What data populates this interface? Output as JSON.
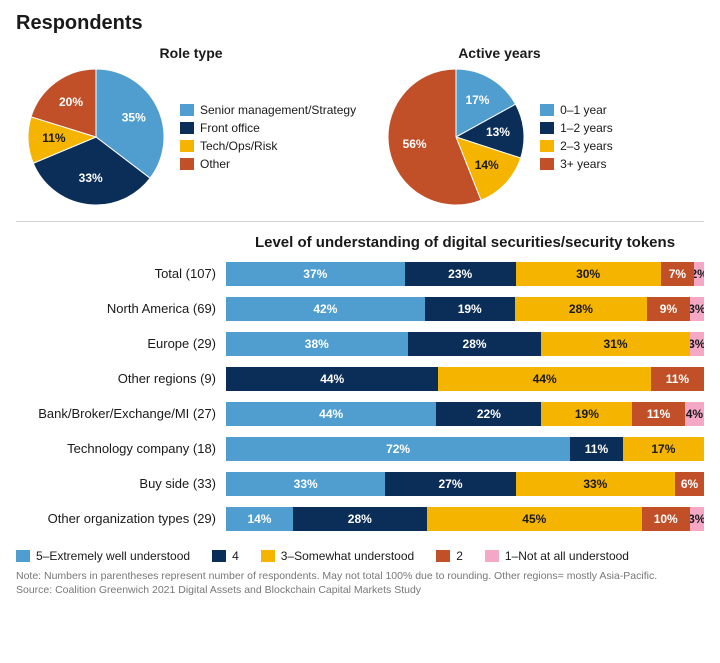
{
  "title": "Respondents",
  "palette": {
    "c1": "#4f9ecf",
    "c2": "#0b2e59",
    "c3": "#f4b400",
    "c4": "#c15029",
    "c5": "#f4a8c6"
  },
  "pie_role": {
    "title": "Role type",
    "radius": 68,
    "label_fontsize": 12,
    "slices": [
      {
        "label": "Senior management/Strategy",
        "value": 35,
        "color": "#4f9ecf",
        "pct_text": "35%"
      },
      {
        "label": "Front office",
        "value": 33,
        "color": "#0b2e59",
        "pct_text": "33%"
      },
      {
        "label": "Tech/Ops/Risk",
        "value": 11,
        "color": "#f4b400",
        "pct_text": "11%"
      },
      {
        "label": "Other",
        "value": 20,
        "color": "#c15029",
        "pct_text": "20%"
      }
    ]
  },
  "pie_years": {
    "title": "Active years",
    "radius": 68,
    "label_fontsize": 12,
    "slices": [
      {
        "label": "0–1 year",
        "value": 17,
        "color": "#4f9ecf",
        "pct_text": "17%"
      },
      {
        "label": "1–2 years",
        "value": 13,
        "color": "#0b2e59",
        "pct_text": "13%"
      },
      {
        "label": "2–3 years",
        "value": 14,
        "color": "#f4b400",
        "pct_text": "14%"
      },
      {
        "label": "3+ years",
        "value": 56,
        "color": "#c15029",
        "pct_text": "56%"
      }
    ]
  },
  "bars": {
    "title": "Level of understanding of digital securities/security tokens",
    "legend": [
      {
        "label": "5–Extremely well understood",
        "color": "#4f9ecf"
      },
      {
        "label": "4",
        "color": "#0b2e59"
      },
      {
        "label": "3–Somewhat understood",
        "color": "#f4b400"
      },
      {
        "label": "2",
        "color": "#c15029"
      },
      {
        "label": "1–Not at all understood",
        "color": "#f4a8c6"
      }
    ],
    "label_fontsize": 13,
    "rows": [
      {
        "label": "Total (107)",
        "segs": [
          {
            "v": 37,
            "t": "37%"
          },
          {
            "v": 23,
            "t": "23%"
          },
          {
            "v": 30,
            "t": "30%"
          },
          {
            "v": 7,
            "t": "7%"
          },
          {
            "v": 2,
            "t": "2%"
          }
        ]
      },
      {
        "label": "North America (69)",
        "segs": [
          {
            "v": 42,
            "t": "42%"
          },
          {
            "v": 19,
            "t": "19%"
          },
          {
            "v": 28,
            "t": "28%"
          },
          {
            "v": 9,
            "t": "9%"
          },
          {
            "v": 3,
            "t": "3%"
          }
        ]
      },
      {
        "label": "Europe (29)",
        "segs": [
          {
            "v": 38,
            "t": "38%"
          },
          {
            "v": 28,
            "t": "28%"
          },
          {
            "v": 31,
            "t": "31%"
          },
          {
            "v": 0,
            "t": ""
          },
          {
            "v": 3,
            "t": "3%"
          }
        ]
      },
      {
        "label": "Other regions (9)",
        "segs": [
          {
            "v": 0,
            "t": ""
          },
          {
            "v": 44,
            "t": "44%"
          },
          {
            "v": 44,
            "t": "44%"
          },
          {
            "v": 11,
            "t": "11%"
          },
          {
            "v": 0,
            "t": ""
          }
        ]
      },
      {
        "label": "Bank/Broker/Exchange/MI (27)",
        "segs": [
          {
            "v": 44,
            "t": "44%"
          },
          {
            "v": 22,
            "t": "22%"
          },
          {
            "v": 19,
            "t": "19%"
          },
          {
            "v": 11,
            "t": "11%"
          },
          {
            "v": 4,
            "t": "4%"
          }
        ]
      },
      {
        "label": "Technology company (18)",
        "segs": [
          {
            "v": 72,
            "t": "72%"
          },
          {
            "v": 11,
            "t": "11%"
          },
          {
            "v": 17,
            "t": "17%"
          },
          {
            "v": 0,
            "t": ""
          },
          {
            "v": 0,
            "t": ""
          }
        ]
      },
      {
        "label": "Buy side (33)",
        "segs": [
          {
            "v": 33,
            "t": "33%"
          },
          {
            "v": 27,
            "t": "27%"
          },
          {
            "v": 33,
            "t": "33%"
          },
          {
            "v": 6,
            "t": "6%"
          },
          {
            "v": 0,
            "t": ""
          }
        ]
      },
      {
        "label": "Other organization types (29)",
        "segs": [
          {
            "v": 14,
            "t": "14%"
          },
          {
            "v": 28,
            "t": "28%"
          },
          {
            "v": 45,
            "t": "45%"
          },
          {
            "v": 10,
            "t": "10%"
          },
          {
            "v": 3,
            "t": "3%"
          }
        ]
      }
    ],
    "seg_colors": [
      "#4f9ecf",
      "#0b2e59",
      "#f4b400",
      "#c15029",
      "#f4a8c6"
    ],
    "dark_text_on": [
      "#f4b400",
      "#f4a8c6"
    ]
  },
  "footnote_line1": "Note: Numbers in parentheses represent number of respondents. May not total 100% due to rounding. Other regions= mostly Asia-Pacific.",
  "footnote_line2": "Source: Coalition Greenwich 2021 Digital Assets and Blockchain Capital Markets Study"
}
